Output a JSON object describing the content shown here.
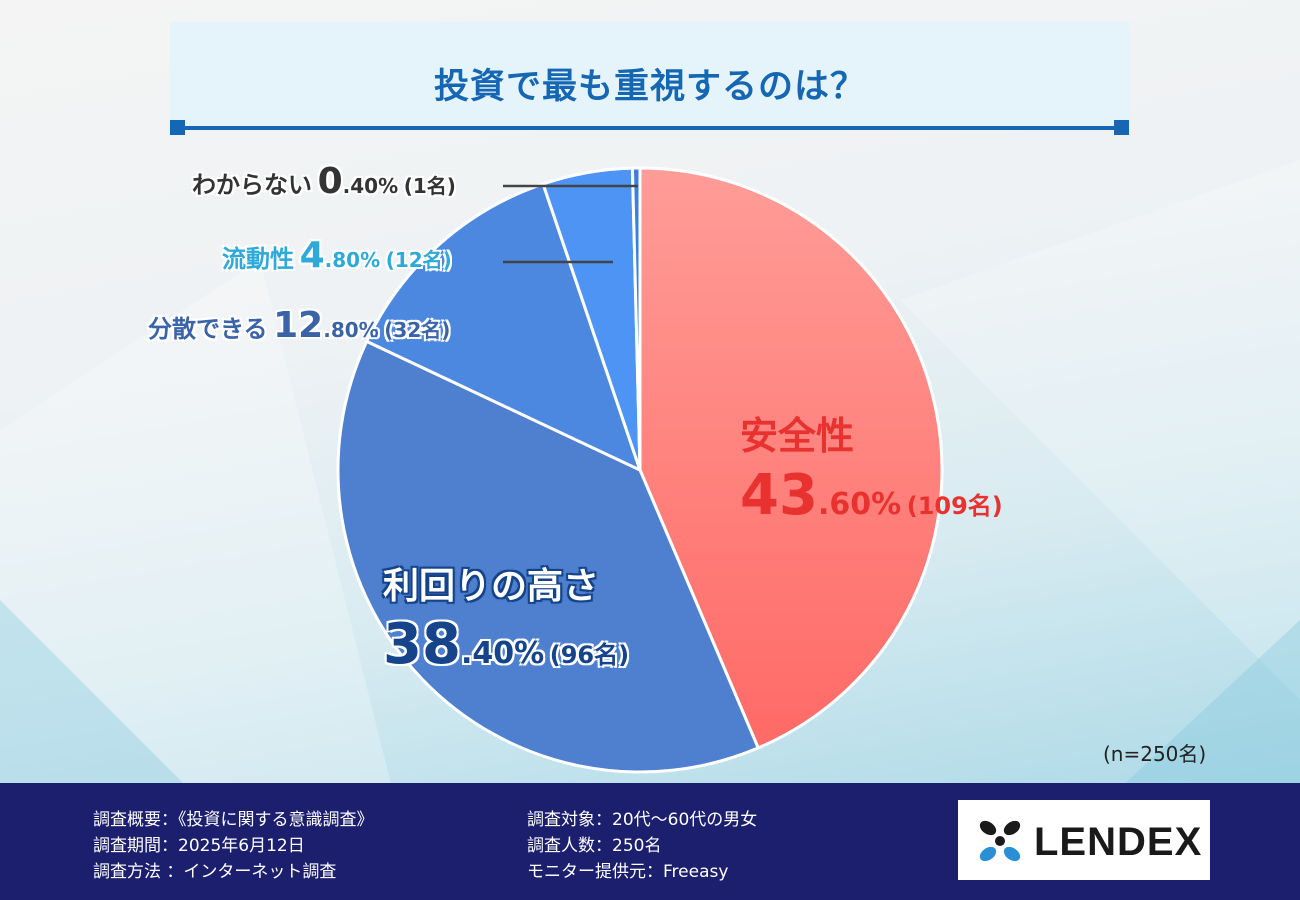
{
  "title": "投資で最も重視するのは？",
  "chart_data": {
    "type": "pie",
    "title": "投資で最も重視するのは？",
    "start_angle_deg": 0,
    "direction": "clockwise",
    "slices": [
      {
        "name": "安全性",
        "value": 43.6,
        "pct_int": "43",
        "pct_dec": ".60%",
        "count": "(109名)",
        "color": "#ff6f6c"
      },
      {
        "name": "利回りの高さ",
        "value": 38.4,
        "pct_int": "38",
        "pct_dec": ".40%",
        "count": "(96名)",
        "color": "#4e80cf"
      },
      {
        "name": "分散できる",
        "value": 12.8,
        "pct_int": "12",
        "pct_dec": ".80%",
        "count": "(32名)",
        "color": "#4c88e0"
      },
      {
        "name": "流動性",
        "value": 4.8,
        "pct_int": "4",
        "pct_dec": ".80%",
        "count": "(12名)",
        "color": "#4d94f5"
      },
      {
        "name": "わからない",
        "value": 0.4,
        "pct_int": "0",
        "pct_dec": ".40%",
        "count": "(1名)",
        "color": "#3d7fe0"
      }
    ],
    "sample_size": "(n=250名)"
  },
  "colors": {
    "title": "#1667b3",
    "safety_label": "#e8322f",
    "yield_label": "#16448a",
    "liquidity_label": "#2ea9d8",
    "dist_label": "#3a63a8",
    "unknown_label": "#333333",
    "footer_bg": "#1c1f6e"
  },
  "footer": {
    "col1": [
      "調査概要：《投資に関する意識調査》",
      "調査期間：2025年6月12日",
      "調査方法 ：インターネット調査"
    ],
    "col2": [
      "調査対象：20代〜60代の男女",
      "調査人数：250名",
      "モニター提供元：Freeasy"
    ]
  },
  "logo": {
    "text": "LENDEX",
    "icon": "lendex-flower-icon"
  }
}
